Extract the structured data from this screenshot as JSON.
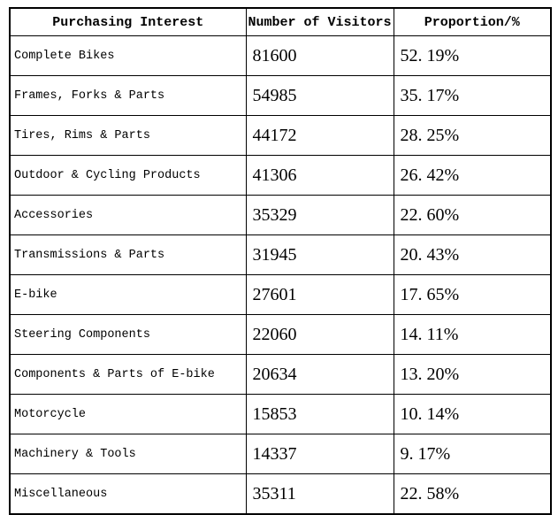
{
  "chart_data": {
    "type": "table",
    "columns": [
      "Purchasing Interest",
      "Number of Visitors",
      "Proportion/%"
    ],
    "rows": [
      [
        "Complete Bikes",
        "81600",
        "52. 19%"
      ],
      [
        "Frames, Forks & Parts",
        "54985",
        "35. 17%"
      ],
      [
        "Tires, Rims & Parts",
        "44172",
        "28. 25%"
      ],
      [
        "Outdoor & Cycling Products",
        "41306",
        "26. 42%"
      ],
      [
        "Accessories",
        "35329",
        "22. 60%"
      ],
      [
        "Transmissions & Parts",
        "31945",
        "20. 43%"
      ],
      [
        "E-bike",
        "27601",
        "17. 65%"
      ],
      [
        "Steering Components",
        "22060",
        "14. 11%"
      ],
      [
        "Components & Parts of E-bike",
        "20634",
        "13. 20%"
      ],
      [
        "Motorcycle",
        "15853",
        "10. 14%"
      ],
      [
        "Machinery & Tools",
        "14337",
        "9. 17%"
      ],
      [
        "Miscellaneous",
        "35311",
        "22. 58%"
      ]
    ],
    "visitor_values": [
      81600,
      54985,
      44172,
      41306,
      35329,
      31945,
      27601,
      22060,
      20634,
      15853,
      14337,
      35311
    ],
    "proportion_values": [
      52.19,
      35.17,
      28.25,
      26.42,
      22.6,
      20.43,
      17.65,
      14.11,
      13.2,
      10.14,
      9.17,
      22.58
    ],
    "colors": {
      "border": "#000000",
      "text": "#000000",
      "background": "#ffffff"
    }
  }
}
